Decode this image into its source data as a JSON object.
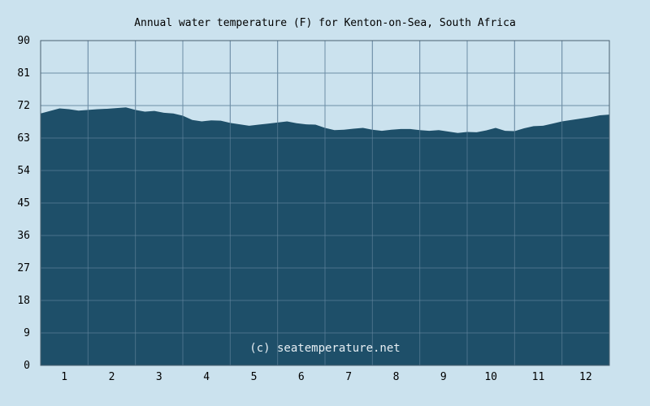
{
  "chart_data": {
    "type": "area",
    "title": "Annual water temperature (F) for Kenton-on-Sea, South Africa",
    "xlabel": "",
    "ylabel": "",
    "x_ticks": [
      "1",
      "2",
      "3",
      "4",
      "5",
      "6",
      "7",
      "8",
      "9",
      "10",
      "11",
      "12"
    ],
    "y_ticks": [
      "0",
      "9",
      "18",
      "27",
      "36",
      "45",
      "54",
      "63",
      "72",
      "81",
      "90"
    ],
    "xlim": [
      0.5,
      12.5
    ],
    "ylim": [
      0,
      90
    ],
    "grid": true,
    "legend": "none",
    "series": [
      {
        "x": [
          0.5,
          0.7,
          0.9,
          1.1,
          1.3,
          1.5,
          1.7,
          1.9,
          2.1,
          2.3,
          2.5,
          2.7,
          2.9,
          3.1,
          3.3,
          3.5,
          3.7,
          3.9,
          4.1,
          4.3,
          4.5,
          4.7,
          4.9,
          5.1,
          5.3,
          5.5,
          5.7,
          5.9,
          6.1,
          6.3,
          6.5,
          6.7,
          6.9,
          7.1,
          7.3,
          7.5,
          7.7,
          7.9,
          8.1,
          8.3,
          8.5,
          8.7,
          8.9,
          9.1,
          9.3,
          9.5,
          9.7,
          9.9,
          10.1,
          10.3,
          10.5,
          10.7,
          10.9,
          11.1,
          11.3,
          11.5,
          11.7,
          11.9,
          12.1,
          12.3,
          12.5
        ],
        "values": [
          69.8,
          70.5,
          71.2,
          71.0,
          70.6,
          70.8,
          71.0,
          71.1,
          71.3,
          71.5,
          70.8,
          70.3,
          70.5,
          70.0,
          69.8,
          69.2,
          68.0,
          67.6,
          67.9,
          67.8,
          67.2,
          66.8,
          66.4,
          66.7,
          67.0,
          67.3,
          67.6,
          67.1,
          66.8,
          66.7,
          65.8,
          65.2,
          65.3,
          65.6,
          65.8,
          65.3,
          65.0,
          65.3,
          65.5,
          65.5,
          65.2,
          65.0,
          65.2,
          64.8,
          64.4,
          64.7,
          64.6,
          65.1,
          65.8,
          65.0,
          64.9,
          65.7,
          66.3,
          66.4,
          67.0,
          67.6,
          68.0,
          68.4,
          68.8,
          69.3,
          69.5
        ]
      }
    ],
    "watermark": "(c) seatemperature.net",
    "colors": {
      "background": "#cbe2ee",
      "plot_background": "#cbe2ee",
      "fill": "#1e4f69",
      "gridline": "#6e8ea6",
      "border": "#4a6070",
      "watermark": "#e6eef3"
    }
  }
}
